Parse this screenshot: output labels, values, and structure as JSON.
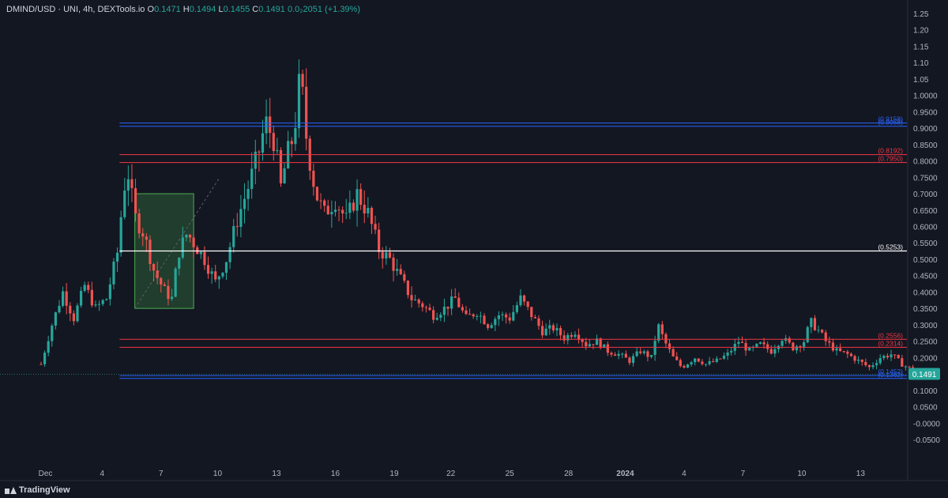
{
  "legend": {
    "symbol": "DMIND/USD · UNI, 4h, DEXTools.io",
    "o_label": "O",
    "o_value": "0.1471",
    "h_label": "H",
    "h_value": "0.1494",
    "l_label": "L",
    "l_value": "0.1455",
    "c_label": "C",
    "c_value": "0.1491",
    "change": "0.0₂2051 (+1.39%)"
  },
  "brand": {
    "name": "TradingView"
  },
  "colors": {
    "background": "#131722",
    "up": "#26a69a",
    "down": "#ef5350",
    "red_level": "#f23645",
    "blue_level": "#2962ff",
    "white_level": "#ffffff",
    "price_badge": "#26a69a",
    "box_fill": "rgba(76,175,80,0.25)",
    "box_stroke": "#4caf50"
  },
  "chart_data": {
    "type": "candlestick",
    "title": "",
    "x_ticks": [
      "Dec",
      "4",
      "7",
      "10",
      "13",
      "16",
      "19",
      "22",
      "25",
      "28",
      "2024",
      "4",
      "7",
      "10",
      "13"
    ],
    "y_ticks": [
      "1.25",
      "1.20",
      "1.15",
      "1.10",
      "1.05",
      "1.0000",
      "0.9500",
      "0.9000",
      "0.8500",
      "0.8000",
      "0.7500",
      "0.7000",
      "0.6500",
      "0.6000",
      "0.5500",
      "0.5000",
      "0.4500",
      "0.4000",
      "0.3500",
      "0.3000",
      "0.2500",
      "0.2000",
      "0.1500",
      "0.1000",
      "0.0500",
      "-0.0000",
      "-0.0500"
    ],
    "ylim": [
      -0.075,
      1.27
    ],
    "x_range_days": [
      0,
      43
    ],
    "y_scale": "linear",
    "grid": false,
    "horizontal_levels": [
      {
        "value": 0.9158,
        "label": "(0.9158)",
        "color": "blue"
      },
      {
        "value": 0.9058,
        "label": "(0.9058)",
        "color": "blue"
      },
      {
        "value": 0.8192,
        "label": "(0.8192)",
        "color": "red"
      },
      {
        "value": 0.795,
        "label": "(0.7950)",
        "color": "red"
      },
      {
        "value": 0.5253,
        "label": "(0.5253)",
        "color": "white"
      },
      {
        "value": 0.2556,
        "label": "(0.2556)",
        "color": "red"
      },
      {
        "value": 0.2314,
        "label": "(0.2314)",
        "color": "red"
      },
      {
        "value": 0.1452,
        "label": "(0.1452)",
        "color": "blue"
      },
      {
        "value": 0.1362,
        "label": "(0.1362)",
        "color": "blue"
      }
    ],
    "highlight_box": {
      "x_start_day": 4.9,
      "x_end_day": 7.0,
      "y_low": 0.35,
      "y_high": 0.7
    },
    "last_price": {
      "value": 0.1491,
      "label": "0.1491"
    },
    "path": [
      [
        0.0,
        0.18
      ],
      [
        0.5,
        0.3
      ],
      [
        1.0,
        0.4
      ],
      [
        1.5,
        0.32
      ],
      [
        2.0,
        0.42
      ],
      [
        2.5,
        0.35
      ],
      [
        3.0,
        0.38
      ],
      [
        3.5,
        0.52
      ],
      [
        3.8,
        0.72
      ],
      [
        4.0,
        0.76
      ],
      [
        4.3,
        0.63
      ],
      [
        4.7,
        0.58
      ],
      [
        5.2,
        0.46
      ],
      [
        5.7,
        0.4
      ],
      [
        6.0,
        0.38
      ],
      [
        6.3,
        0.52
      ],
      [
        6.7,
        0.58
      ],
      [
        7.0,
        0.55
      ],
      [
        7.5,
        0.5
      ],
      [
        8.0,
        0.43
      ],
      [
        8.5,
        0.5
      ],
      [
        9.0,
        0.62
      ],
      [
        9.5,
        0.72
      ],
      [
        10.0,
        0.83
      ],
      [
        10.3,
        0.92
      ],
      [
        10.7,
        0.86
      ],
      [
        11.0,
        0.72
      ],
      [
        11.3,
        0.82
      ],
      [
        11.6,
        0.88
      ],
      [
        11.9,
        1.07
      ],
      [
        12.2,
        0.85
      ],
      [
        12.6,
        0.7
      ],
      [
        13.0,
        0.64
      ],
      [
        13.5,
        0.68
      ],
      [
        14.0,
        0.62
      ],
      [
        14.5,
        0.7
      ],
      [
        15.0,
        0.64
      ],
      [
        15.5,
        0.53
      ],
      [
        16.0,
        0.5
      ],
      [
        16.5,
        0.44
      ],
      [
        17.0,
        0.38
      ],
      [
        17.5,
        0.36
      ],
      [
        18.0,
        0.33
      ],
      [
        18.5,
        0.35
      ],
      [
        19.0,
        0.38
      ],
      [
        19.5,
        0.32
      ],
      [
        20.0,
        0.34
      ],
      [
        20.5,
        0.3
      ],
      [
        21.0,
        0.33
      ],
      [
        21.5,
        0.32
      ],
      [
        22.0,
        0.38
      ],
      [
        22.5,
        0.33
      ],
      [
        23.0,
        0.28
      ],
      [
        23.5,
        0.29
      ],
      [
        24.0,
        0.26
      ],
      [
        24.5,
        0.28
      ],
      [
        25.0,
        0.24
      ],
      [
        25.5,
        0.25
      ],
      [
        26.0,
        0.22
      ],
      [
        26.5,
        0.21
      ],
      [
        27.0,
        0.19
      ],
      [
        27.5,
        0.22
      ],
      [
        28.0,
        0.2
      ],
      [
        28.3,
        0.3
      ],
      [
        28.6,
        0.25
      ],
      [
        29.0,
        0.2
      ],
      [
        29.4,
        0.17
      ],
      [
        30.0,
        0.2
      ],
      [
        30.5,
        0.18
      ],
      [
        31.0,
        0.19
      ],
      [
        31.5,
        0.21
      ],
      [
        32.0,
        0.25
      ],
      [
        32.5,
        0.22
      ],
      [
        33.0,
        0.24
      ],
      [
        33.5,
        0.22
      ],
      [
        34.0,
        0.26
      ],
      [
        34.5,
        0.23
      ],
      [
        35.0,
        0.25
      ],
      [
        35.3,
        0.31
      ],
      [
        35.7,
        0.28
      ],
      [
        36.0,
        0.25
      ],
      [
        36.5,
        0.22
      ],
      [
        37.0,
        0.21
      ],
      [
        37.5,
        0.19
      ],
      [
        38.0,
        0.17
      ],
      [
        38.5,
        0.2
      ],
      [
        39.0,
        0.21
      ],
      [
        39.5,
        0.18
      ],
      [
        40.0,
        0.16
      ],
      [
        40.4,
        0.145
      ],
      [
        40.6,
        0.1491
      ]
    ]
  }
}
